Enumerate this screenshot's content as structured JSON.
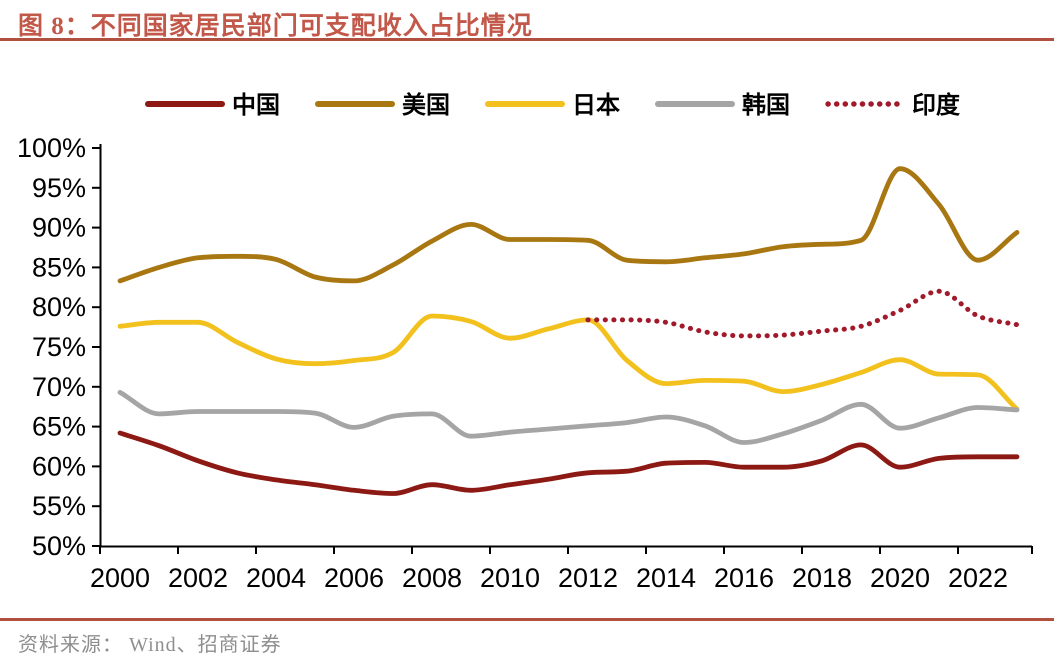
{
  "title": {
    "full": "图 8：不同国家居民部门可支配收入占比情况"
  },
  "source": {
    "text": "资料来源：  Wind、招商证券"
  },
  "colors": {
    "title_text": "#C2584A",
    "rule": "#B1503E",
    "source_text": "#8E8E8E",
    "axis": "#000000",
    "background": "#FFFFFF"
  },
  "chart_data": {
    "type": "line",
    "title": "不同国家居民部门可支配收入占比情况",
    "xlabel": "",
    "ylabel": "",
    "ylim": [
      50,
      100
    ],
    "ytick_step": 5,
    "grid": false,
    "legend_position": "top",
    "x": [
      2000,
      2001,
      2002,
      2003,
      2004,
      2005,
      2006,
      2007,
      2008,
      2009,
      2010,
      2011,
      2012,
      2013,
      2014,
      2015,
      2016,
      2017,
      2018,
      2019,
      2020,
      2021,
      2022,
      2023
    ],
    "xtick_labels": [
      "2000",
      "2002",
      "2004",
      "2006",
      "2008",
      "2010",
      "2012",
      "2014",
      "2016",
      "2018",
      "2020",
      "2022"
    ],
    "ytick_labels": [
      "100%",
      "95%",
      "90%",
      "85%",
      "80%",
      "75%",
      "70%",
      "65%",
      "60%",
      "55%",
      "50%"
    ],
    "yticks": [
      100,
      95,
      90,
      85,
      80,
      75,
      70,
      65,
      60,
      55,
      50
    ],
    "series": [
      {
        "key": "china",
        "name": "中国",
        "color": "#8C1913",
        "style": "solid",
        "values": [
          64.2,
          62.6,
          60.7,
          59.2,
          58.3,
          57.7,
          57.0,
          56.6,
          57.7,
          57.0,
          57.7,
          58.4,
          59.2,
          59.4,
          60.4,
          60.5,
          59.9,
          59.9,
          60.7,
          62.7,
          59.9,
          61.0,
          61.2,
          61.2
        ]
      },
      {
        "key": "usa",
        "name": "美国",
        "color": "#A87712",
        "style": "solid",
        "values": [
          83.3,
          85.0,
          86.2,
          86.4,
          86.0,
          83.8,
          83.3,
          85.3,
          88.3,
          90.4,
          88.5,
          88.5,
          88.4,
          85.9,
          85.7,
          86.2,
          86.7,
          87.6,
          87.9,
          88.4,
          97.4,
          92.9,
          85.9,
          89.4
        ]
      },
      {
        "key": "japan",
        "name": "日本",
        "color": "#F2C11E",
        "style": "solid",
        "values": [
          77.6,
          78.1,
          78.1,
          75.6,
          73.5,
          72.9,
          73.3,
          74.3,
          78.9,
          78.2,
          76.1,
          77.3,
          78.4,
          73.3,
          70.4,
          70.8,
          70.7,
          69.4,
          70.3,
          71.8,
          73.4,
          71.6,
          71.5,
          67.2
        ]
      },
      {
        "key": "korea",
        "name": "韩国",
        "color": "#A5A5A5",
        "style": "solid",
        "values": [
          69.3,
          66.6,
          66.9,
          66.9,
          66.9,
          66.7,
          64.9,
          66.3,
          66.6,
          63.8,
          64.3,
          64.7,
          65.1,
          65.5,
          66.2,
          65.1,
          63.0,
          64.1,
          65.8,
          67.8,
          64.8,
          66.1,
          67.4,
          67.1
        ]
      },
      {
        "key": "india",
        "name": "印度",
        "color": "#A11A2B",
        "style": "dotted",
        "values": [
          null,
          null,
          null,
          null,
          null,
          null,
          null,
          null,
          null,
          null,
          null,
          null,
          78.4,
          78.4,
          78.1,
          76.9,
          76.4,
          76.5,
          77.0,
          77.6,
          79.6,
          82.0,
          78.9,
          77.8
        ]
      }
    ]
  }
}
